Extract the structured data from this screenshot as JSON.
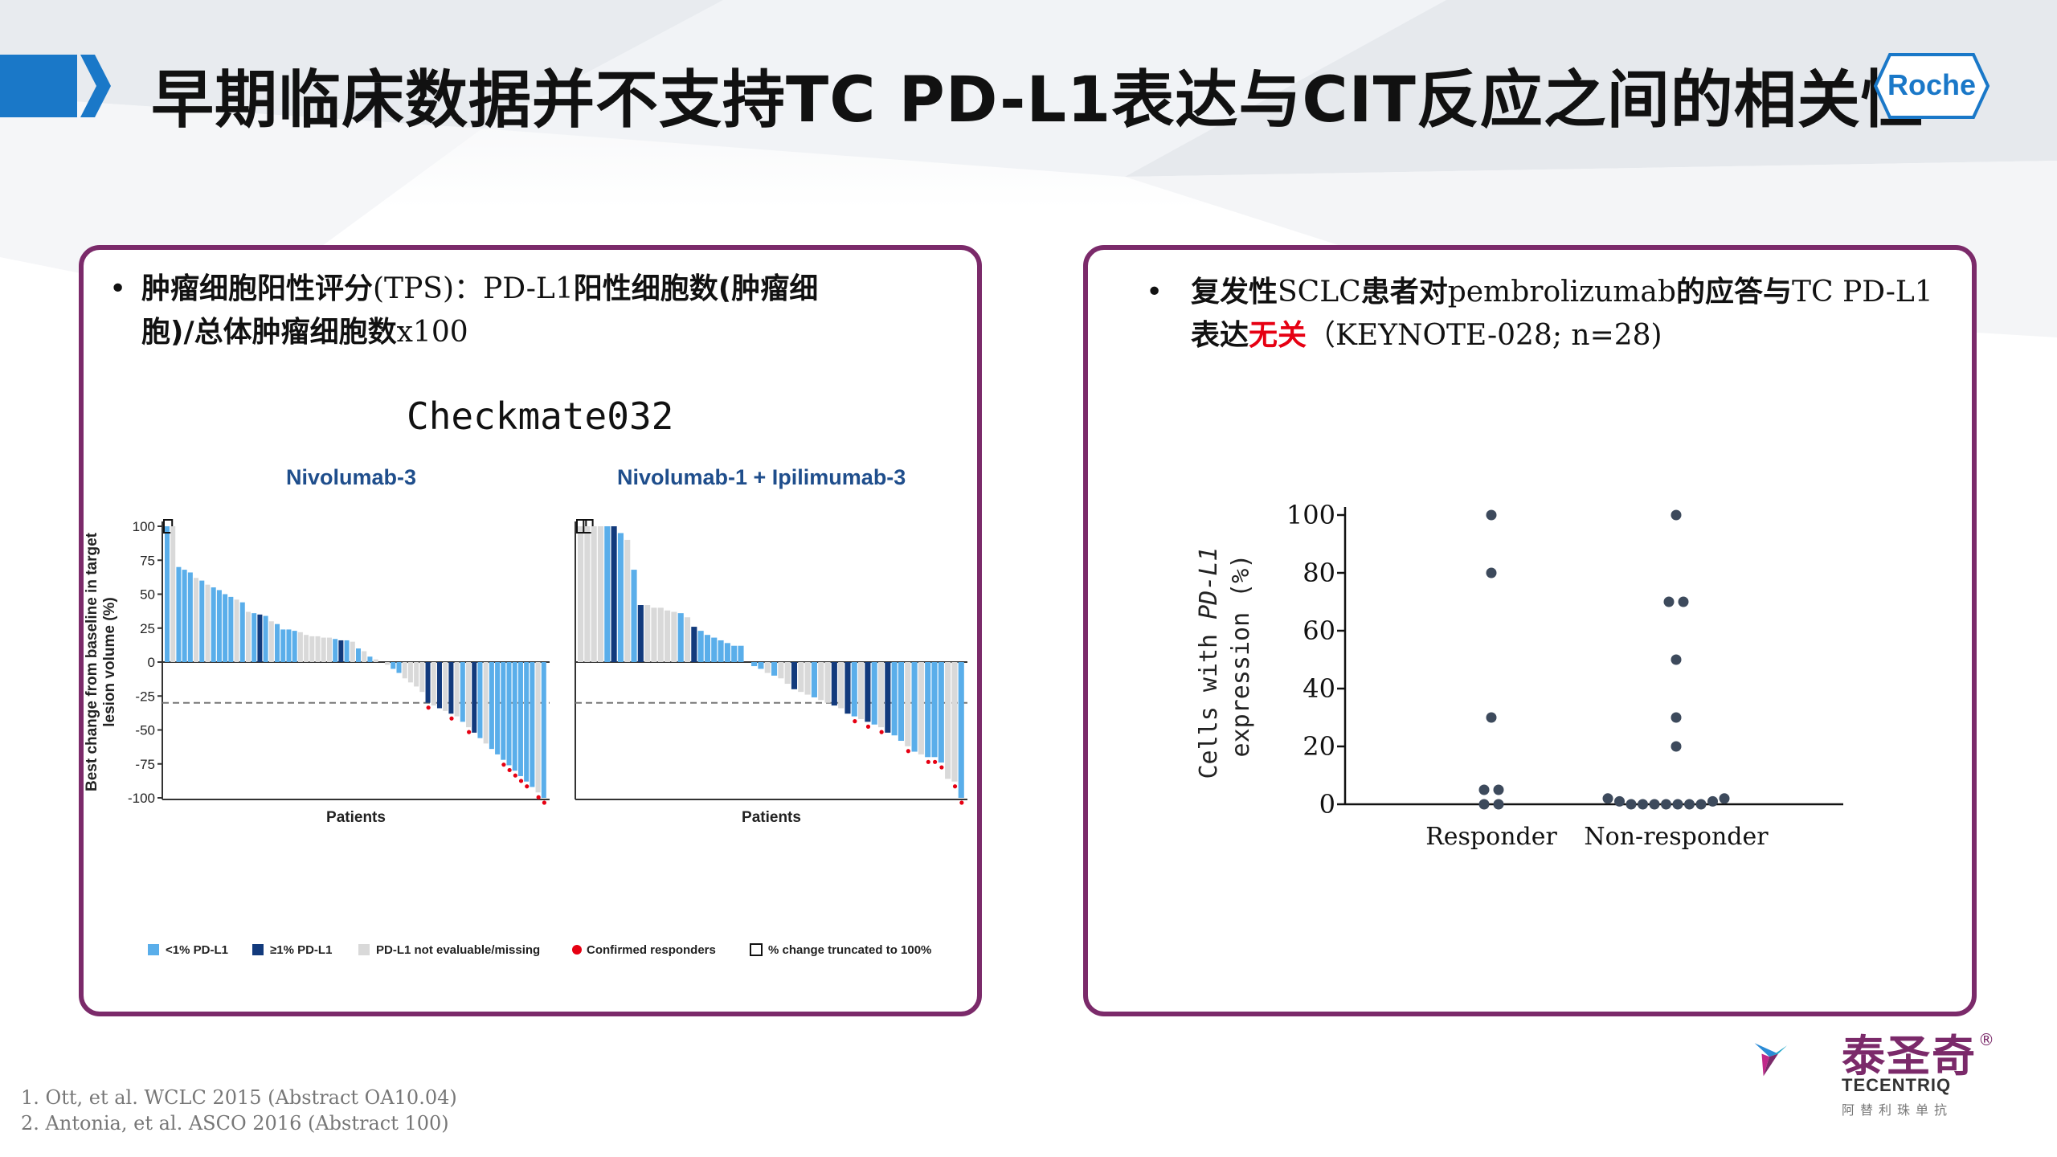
{
  "title": "早期临床数据并不支持TC PD-L1表达与CIT反应之间的相关性",
  "logo": {
    "text": "Roche"
  },
  "left_panel": {
    "bullet_a": "肿瘤细胞阳性评分",
    "bullet_b": "(TPS)：PD-L1",
    "bullet_c": "阳性细胞数(肿瘤细",
    "bullet_d": "胞)/总体肿瘤细胞数",
    "bullet_e": "x100",
    "chart_title": "Checkmate032",
    "subtitle_1": "Nivolumab-3",
    "subtitle_2": "Nivolumab-1 + Ipilimumab-3",
    "legend": [
      "<1% PD-L1",
      "≥1% PD-L1",
      "PD-L1 not evaluable/missing",
      "Confirmed responders",
      "% change truncated to 100%"
    ]
  },
  "right_panel": {
    "bullet_a": "复发性",
    "bullet_b": "SCLC",
    "bullet_c": "患者对",
    "bullet_d": "pembrolizumab",
    "bullet_e": "的应答与",
    "bullet_f": "TC PD-L1",
    "bullet_g": "表达",
    "bullet_h": "无关",
    "bullet_i": "（KEYNOTE-028; n=28)"
  },
  "colors": {
    "low": "#5aaeea",
    "high": "#123a7c",
    "na": "#d9d9d9",
    "responder": "#e60012",
    "frame": "#7b2a6a"
  },
  "chart_data": [
    {
      "type": "bar",
      "title": "Nivolumab-3",
      "xlabel": "Patients",
      "ylabel": "Best change from baseline in target lesion volume (%)",
      "ylim": [
        -100,
        100
      ],
      "yticks": [
        100,
        75,
        50,
        25,
        0,
        -25,
        -50,
        -75,
        -100
      ],
      "reference_line": -30,
      "values": [
        100,
        100,
        70,
        68,
        66,
        62,
        60,
        57,
        55,
        53,
        50,
        48,
        46,
        44,
        37,
        36,
        35,
        34,
        30,
        28,
        24,
        24,
        23,
        22,
        20,
        19,
        19,
        18,
        18,
        17,
        16,
        16,
        15,
        10,
        8,
        4,
        2,
        0,
        -2,
        -5,
        -8,
        -12,
        -15,
        -18,
        -22,
        -30,
        -32,
        -34,
        -36,
        -38,
        -40,
        -44,
        -48,
        -52,
        -56,
        -60,
        -64,
        -68,
        -72,
        -76,
        -80,
        -84,
        -88,
        -92,
        -96,
        -100
      ],
      "groups": [
        "low",
        "na",
        "low",
        "low",
        "low",
        "na",
        "low",
        "na",
        "low",
        "low",
        "low",
        "low",
        "na",
        "low",
        "na",
        "low",
        "high",
        "low",
        "na",
        "low",
        "low",
        "low",
        "low",
        "na",
        "na",
        "na",
        "na",
        "na",
        "na",
        "low",
        "high",
        "low",
        "na",
        "low",
        "na",
        "low",
        "na",
        "na",
        "na",
        "low",
        "low",
        "na",
        "na",
        "na",
        "na",
        "high",
        "na",
        "high",
        "na",
        "high",
        "na",
        "low",
        "na",
        "high",
        "low",
        "na",
        "low",
        "low",
        "low",
        "low",
        "low",
        "low",
        "low",
        "low",
        "na",
        "low"
      ],
      "responders": [
        false,
        false,
        false,
        false,
        false,
        false,
        false,
        false,
        false,
        false,
        false,
        false,
        false,
        false,
        false,
        false,
        false,
        false,
        false,
        false,
        false,
        false,
        false,
        false,
        false,
        false,
        false,
        false,
        false,
        false,
        false,
        false,
        false,
        false,
        false,
        false,
        false,
        false,
        false,
        false,
        false,
        false,
        false,
        false,
        false,
        true,
        false,
        false,
        false,
        true,
        false,
        false,
        true,
        false,
        false,
        false,
        false,
        false,
        true,
        true,
        true,
        true,
        true,
        false,
        true,
        true
      ],
      "truncated": [
        true,
        false,
        false,
        false,
        false,
        false,
        false,
        false,
        false,
        false,
        false,
        false,
        false,
        false,
        false,
        false,
        false,
        false,
        false,
        false,
        false,
        false,
        false,
        false,
        false,
        false,
        false,
        false,
        false,
        false,
        false,
        false,
        false,
        false,
        false,
        false,
        false,
        false,
        false,
        false,
        false,
        false,
        false,
        false,
        false,
        false,
        false,
        false,
        false,
        false,
        false,
        false,
        false,
        false,
        false,
        false,
        false,
        false,
        false,
        false,
        false,
        false,
        false,
        false,
        false,
        false
      ]
    },
    {
      "type": "bar",
      "title": "Nivolumab-1 + Ipilimumab-3",
      "xlabel": "Patients",
      "ylim": [
        -100,
        100
      ],
      "reference_line": -30,
      "values": [
        100,
        100,
        100,
        100,
        100,
        100,
        95,
        90,
        68,
        42,
        42,
        40,
        40,
        38,
        37,
        36,
        33,
        26,
        23,
        20,
        18,
        16,
        14,
        12,
        12,
        0,
        -3,
        -5,
        -8,
        -10,
        -12,
        -16,
        -20,
        -22,
        -24,
        -26,
        -28,
        -30,
        -32,
        -34,
        -38,
        -40,
        -42,
        -44,
        -46,
        -48,
        -52,
        -54,
        -58,
        -62,
        -66,
        -68,
        -70,
        -70,
        -74,
        -86,
        -88,
        -100
      ],
      "groups": [
        "na",
        "na",
        "na",
        "na",
        "low",
        "high",
        "low",
        "na",
        "low",
        "high",
        "na",
        "na",
        "na",
        "na",
        "na",
        "low",
        "na",
        "high",
        "low",
        "low",
        "low",
        "low",
        "low",
        "low",
        "low",
        "na",
        "low",
        "low",
        "na",
        "low",
        "na",
        "na",
        "high",
        "na",
        "na",
        "low",
        "na",
        "na",
        "high",
        "na",
        "high",
        "low",
        "na",
        "high",
        "low",
        "na",
        "high",
        "low",
        "low",
        "na",
        "low",
        "na",
        "low",
        "low",
        "low",
        "na",
        "na",
        "low"
      ],
      "responders": [
        false,
        false,
        false,
        false,
        false,
        false,
        false,
        false,
        false,
        false,
        false,
        false,
        false,
        false,
        false,
        false,
        false,
        false,
        false,
        false,
        false,
        false,
        false,
        false,
        false,
        false,
        false,
        false,
        false,
        false,
        false,
        false,
        false,
        false,
        false,
        false,
        false,
        false,
        false,
        false,
        false,
        true,
        false,
        true,
        false,
        true,
        false,
        false,
        false,
        true,
        false,
        false,
        true,
        true,
        true,
        false,
        true,
        true
      ],
      "truncated": [
        true,
        true,
        false,
        false,
        false,
        false,
        false,
        false,
        false,
        false,
        false,
        false,
        false,
        false,
        false,
        false,
        false,
        false,
        false,
        false,
        false,
        false,
        false,
        false,
        false,
        false,
        false,
        false,
        false,
        false,
        false,
        false,
        false,
        false,
        false,
        false,
        false,
        false,
        false,
        false,
        false,
        false,
        false,
        false,
        false,
        false,
        false,
        false,
        false,
        false,
        false,
        false,
        false,
        false,
        false,
        false,
        false,
        false
      ]
    },
    {
      "type": "scatter",
      "ylabel_a": "Cells with ",
      "ylabel_b": "PD-L1",
      "ylabel_c": "expression (%)",
      "categories": [
        "Responder",
        "Non-responder"
      ],
      "ylim": [
        0,
        100
      ],
      "yticks": [
        0,
        20,
        40,
        60,
        80,
        100
      ],
      "points": [
        {
          "category": "Responder",
          "y": 100
        },
        {
          "category": "Responder",
          "y": 80
        },
        {
          "category": "Responder",
          "y": 30
        },
        {
          "category": "Responder",
          "y": 5
        },
        {
          "category": "Responder",
          "y": 5
        },
        {
          "category": "Responder",
          "y": 0
        },
        {
          "category": "Responder",
          "y": 0
        },
        {
          "category": "Non-responder",
          "y": 100
        },
        {
          "category": "Non-responder",
          "y": 70
        },
        {
          "category": "Non-responder",
          "y": 70
        },
        {
          "category": "Non-responder",
          "y": 50
        },
        {
          "category": "Non-responder",
          "y": 30
        },
        {
          "category": "Non-responder",
          "y": 20
        },
        {
          "category": "Non-responder",
          "y": 2
        },
        {
          "category": "Non-responder",
          "y": 1
        },
        {
          "category": "Non-responder",
          "y": 0
        },
        {
          "category": "Non-responder",
          "y": 0
        },
        {
          "category": "Non-responder",
          "y": 0
        },
        {
          "category": "Non-responder",
          "y": 0
        },
        {
          "category": "Non-responder",
          "y": 0
        },
        {
          "category": "Non-responder",
          "y": 0
        },
        {
          "category": "Non-responder",
          "y": 0
        },
        {
          "category": "Non-responder",
          "y": 1
        },
        {
          "category": "Non-responder",
          "y": 2
        }
      ]
    }
  ],
  "footnotes": [
    "1.    Ott,  et al. WCLC 2015 (Abstract OA10.04)",
    "2.   Antonia,  et al. ASCO 2016 (Abstract 100)"
  ],
  "brand": {
    "cn": "泰圣奇",
    "en": "TECENTRIQ",
    "small": "阿替利珠单抗",
    "reg": "®"
  }
}
